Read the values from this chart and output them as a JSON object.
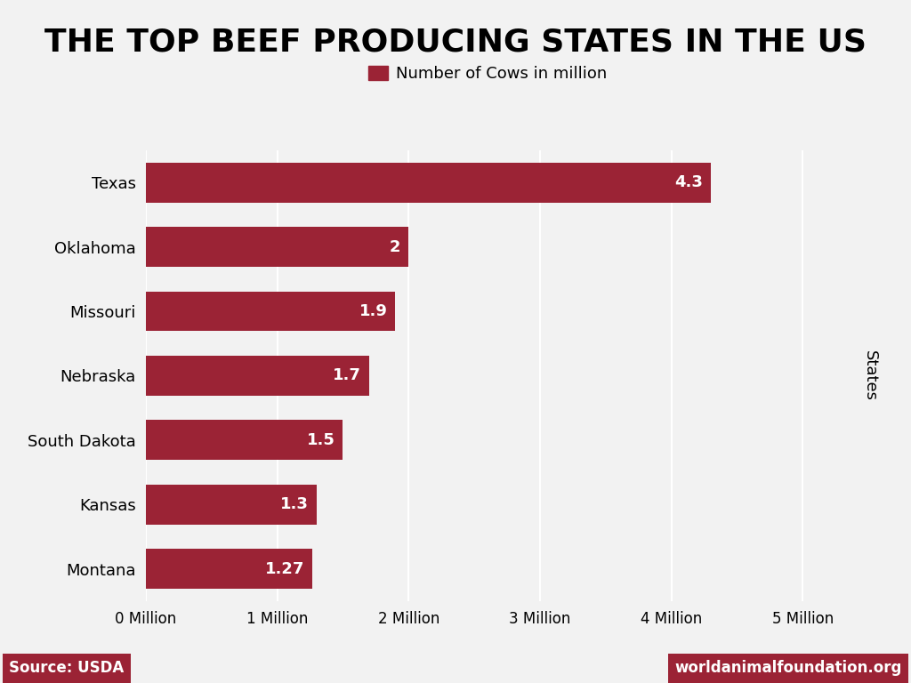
{
  "title": "THE TOP BEEF PRODUCING STATES IN THE US",
  "states": [
    "Texas",
    "Oklahoma",
    "Missouri",
    "Nebraska",
    "South Dakota",
    "Kansas",
    "Montana"
  ],
  "values": [
    4.3,
    2.0,
    1.9,
    1.7,
    1.5,
    1.3,
    1.27
  ],
  "bar_color": "#9B2335",
  "background_color": "#F2F2F2",
  "legend_label": "Number of Cows in million",
  "legend_color": "#9B2335",
  "ylabel": "States",
  "xlabel_ticks": [
    "0 Million",
    "1 Million",
    "2 Million",
    "3 Million",
    "4 Million",
    "5 Million"
  ],
  "xlabel_values": [
    0,
    1,
    2,
    3,
    4,
    5
  ],
  "xlim": [
    0,
    5.2
  ],
  "source_text": "Source: USDA",
  "source_bg": "#9B2335",
  "website_text": "worldanimalfoundation.org",
  "website_bg": "#9B2335",
  "label_color": "#FFFFFF",
  "bar_value_labels": [
    "4.3",
    "2",
    "1.9",
    "1.7",
    "1.5",
    "1.3",
    "1.27"
  ],
  "title_fontsize": 26,
  "bar_label_fontsize": 13,
  "tick_fontsize": 12,
  "legend_fontsize": 13,
  "ylabel_fontsize": 13
}
